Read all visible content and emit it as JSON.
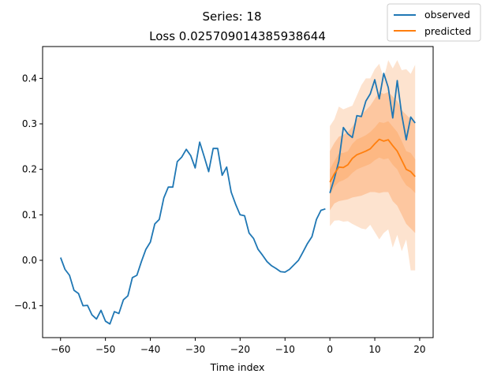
{
  "chart_data": {
    "type": "line",
    "title": "Series: 18",
    "subtitle": "Loss 0.025709014385938644",
    "xlabel": "Time index",
    "ylabel": "",
    "xlim": [
      -64,
      23
    ],
    "ylim": [
      -0.17,
      0.47
    ],
    "xticks": [
      -60,
      -50,
      -40,
      -30,
      -20,
      -10,
      0,
      10,
      20
    ],
    "yticks": [
      -0.1,
      0.0,
      0.1,
      0.2,
      0.3,
      0.4
    ],
    "grid": false,
    "legend_position": "top-right",
    "series": [
      {
        "name": "observed",
        "color": "#1f77b4",
        "x": [
          -60,
          -59,
          -58,
          -57,
          -56,
          -55,
          -54,
          -53,
          -52,
          -51,
          -50,
          -49,
          -48,
          -47,
          -46,
          -45,
          -44,
          -43,
          -42,
          -41,
          -40,
          -39,
          -38,
          -37,
          -36,
          -35,
          -34,
          -33,
          -32,
          -31,
          -30,
          -29,
          -28,
          -27,
          -26,
          -25,
          -24,
          -23,
          -22,
          -21,
          -20,
          -19,
          -18,
          -17,
          -16,
          -15,
          -14,
          -13,
          -12,
          -11,
          -10,
          -9,
          -8,
          -7,
          -6,
          -5,
          -4,
          -3,
          -2,
          -1
        ],
        "values": [
          0.006,
          -0.02,
          -0.033,
          -0.066,
          -0.073,
          -0.1,
          -0.099,
          -0.12,
          -0.129,
          -0.11,
          -0.134,
          -0.14,
          -0.113,
          -0.117,
          -0.087,
          -0.078,
          -0.038,
          -0.033,
          -0.003,
          0.024,
          0.04,
          0.08,
          0.09,
          0.137,
          0.161,
          0.161,
          0.217,
          0.227,
          0.244,
          0.23,
          0.203,
          0.26,
          0.228,
          0.195,
          0.246,
          0.246,
          0.187,
          0.205,
          0.15,
          0.123,
          0.1,
          0.098,
          0.06,
          0.048,
          0.024,
          0.011,
          -0.003,
          -0.012,
          -0.018,
          -0.025,
          -0.026,
          -0.02,
          -0.01,
          0.0,
          0.018,
          0.037,
          0.052,
          0.09,
          0.11,
          0.113
        ]
      },
      {
        "name": "observed",
        "color": "#1f77b4",
        "x": [
          0,
          1,
          2,
          3,
          4,
          5,
          6,
          7,
          8,
          9,
          10,
          11,
          12,
          13,
          14,
          15,
          16,
          17,
          18,
          19
        ],
        "values": [
          0.148,
          0.18,
          0.218,
          0.292,
          0.278,
          0.27,
          0.318,
          0.316,
          0.35,
          0.366,
          0.397,
          0.355,
          0.411,
          0.38,
          0.313,
          0.395,
          0.32,
          0.265,
          0.315,
          0.302
        ]
      },
      {
        "name": "predicted",
        "color": "#ff7f0e",
        "x": [
          0,
          1,
          2,
          3,
          4,
          5,
          6,
          7,
          8,
          9,
          10,
          11,
          12,
          13,
          14,
          15,
          16,
          17,
          18,
          19
        ],
        "values": [
          0.172,
          0.19,
          0.205,
          0.204,
          0.21,
          0.224,
          0.232,
          0.236,
          0.24,
          0.245,
          0.256,
          0.266,
          0.262,
          0.265,
          0.252,
          0.24,
          0.22,
          0.2,
          0.195,
          0.184
        ]
      }
    ],
    "prediction_bands": {
      "x": [
        0,
        1,
        2,
        3,
        4,
        5,
        6,
        7,
        8,
        9,
        10,
        11,
        12,
        13,
        14,
        15,
        16,
        17,
        18,
        19
      ],
      "outer_low": [
        0.075,
        0.087,
        0.088,
        0.085,
        0.086,
        0.08,
        0.075,
        0.07,
        0.068,
        0.078,
        0.062,
        0.046,
        0.06,
        0.068,
        0.028,
        0.056,
        0.02,
        0.046,
        -0.022,
        -0.022
      ],
      "outer_high": [
        0.295,
        0.31,
        0.338,
        0.332,
        0.336,
        0.34,
        0.362,
        0.385,
        0.4,
        0.4,
        0.42,
        0.432,
        0.4,
        0.44,
        0.422,
        0.44,
        0.418,
        0.42,
        0.41,
        0.43
      ],
      "mid_low": [
        0.11,
        0.125,
        0.13,
        0.132,
        0.134,
        0.138,
        0.14,
        0.142,
        0.146,
        0.15,
        0.15,
        0.148,
        0.15,
        0.15,
        0.13,
        0.12,
        0.1,
        0.08,
        0.07,
        0.06
      ],
      "mid_high": [
        0.24,
        0.258,
        0.272,
        0.276,
        0.282,
        0.294,
        0.31,
        0.32,
        0.33,
        0.34,
        0.355,
        0.37,
        0.366,
        0.37,
        0.36,
        0.35,
        0.33,
        0.32,
        0.31,
        0.305
      ],
      "inner_low": [
        0.145,
        0.162,
        0.172,
        0.176,
        0.182,
        0.192,
        0.2,
        0.204,
        0.208,
        0.212,
        0.22,
        0.226,
        0.222,
        0.224,
        0.21,
        0.2,
        0.18,
        0.165,
        0.158,
        0.148
      ],
      "inner_high": [
        0.2,
        0.218,
        0.235,
        0.236,
        0.24,
        0.256,
        0.266,
        0.27,
        0.275,
        0.282,
        0.292,
        0.304,
        0.302,
        0.306,
        0.294,
        0.282,
        0.262,
        0.24,
        0.236,
        0.222
      ],
      "colors": [
        "#fde3cf",
        "#fdc7a0",
        "#fdb883"
      ]
    }
  }
}
